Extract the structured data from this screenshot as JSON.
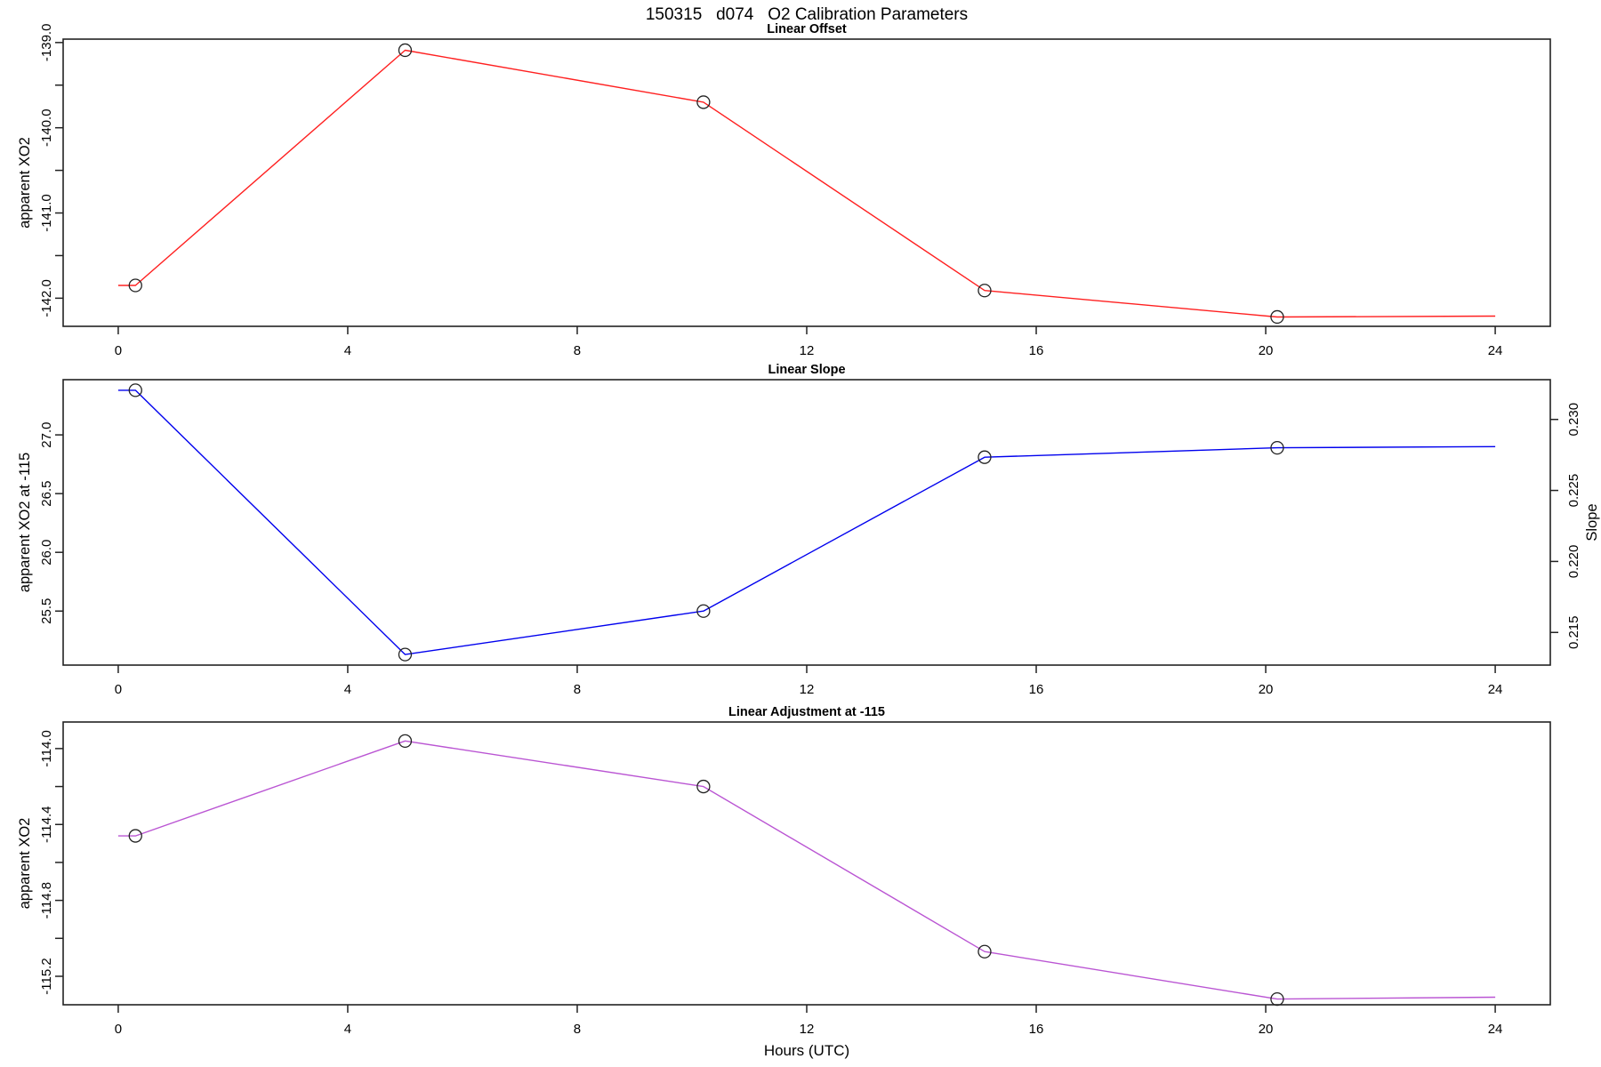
{
  "main_title": "150315   d074   O2 Calibration Parameters",
  "xlabel": "Hours (UTC)",
  "frame_color": "#222222",
  "point_color": "#222222",
  "chart_data": [
    {
      "type": "line",
      "title": "Linear Offset",
      "ylabel": "apparent XO2",
      "color": "#ff2020",
      "xlim": [
        -0.96,
        24.96
      ],
      "ylim": [
        -142.33,
        -138.96
      ],
      "xticks": {
        "values": [
          0,
          4,
          8,
          12,
          16,
          20,
          24
        ],
        "labels": [
          "0",
          "4",
          "8",
          "12",
          "16",
          "20",
          "24"
        ]
      },
      "yticks": {
        "values": [
          -142.0,
          -141.5,
          -141.0,
          -140.5,
          -140.0,
          -139.5,
          -139.0
        ],
        "labels": [
          "-142.0",
          "",
          "-141.0",
          "",
          "-140.0",
          "",
          "-139.0"
        ]
      },
      "points": {
        "x": [
          0.3,
          5.0,
          10.2,
          15.1,
          20.2
        ],
        "y": [
          -141.85,
          -139.09,
          -139.7,
          -141.91,
          -142.22
        ]
      },
      "line": {
        "x": [
          0,
          0.3,
          5.0,
          10.2,
          15.1,
          20.2,
          24
        ],
        "y": [
          -141.85,
          -141.85,
          -139.09,
          -139.7,
          -141.91,
          -142.22,
          -142.21
        ]
      }
    },
    {
      "type": "line",
      "title": "Linear Slope",
      "ylabel": "apparent XO2 at -115",
      "ylabel_right": "Slope",
      "color": "#0000ee",
      "xlim": [
        -0.96,
        24.96
      ],
      "ylim": [
        25.04,
        27.47
      ],
      "ylim_right": [
        0.2127,
        0.2328
      ],
      "xticks": {
        "values": [
          0,
          4,
          8,
          12,
          16,
          20,
          24
        ],
        "labels": [
          "0",
          "4",
          "8",
          "12",
          "16",
          "20",
          "24"
        ]
      },
      "yticks": {
        "values": [
          25.5,
          26.0,
          26.5,
          27.0
        ],
        "labels": [
          "25.5",
          "26.0",
          "26.5",
          "27.0"
        ]
      },
      "yticks_right": {
        "values": [
          0.215,
          0.22,
          0.225,
          0.23
        ],
        "labels": [
          "0.215",
          "0.220",
          "0.225",
          "0.230"
        ]
      },
      "points": {
        "x": [
          0.3,
          5.0,
          10.2,
          15.1,
          20.2
        ],
        "y": [
          27.38,
          25.13,
          25.5,
          26.81,
          26.89
        ]
      },
      "line": {
        "x": [
          0,
          0.3,
          5.0,
          10.2,
          15.1,
          20.2,
          24
        ],
        "y": [
          27.38,
          27.38,
          25.13,
          25.5,
          26.81,
          26.89,
          26.9
        ]
      }
    },
    {
      "type": "line",
      "title": "Linear Adjustment at -115",
      "ylabel": "apparent XO2",
      "color": "#ba55d3",
      "xlim": [
        -0.96,
        24.96
      ],
      "ylim": [
        -115.35,
        -113.86
      ],
      "xticks": {
        "values": [
          0,
          4,
          8,
          12,
          16,
          20,
          24
        ],
        "labels": [
          "0",
          "4",
          "8",
          "12",
          "16",
          "20",
          "24"
        ]
      },
      "yticks": {
        "values": [
          -115.2,
          -115.0,
          -114.8,
          -114.6,
          -114.4,
          -114.2,
          -114.0
        ],
        "labels": [
          "-115.2",
          "",
          "-114.8",
          "",
          "-114.4",
          "",
          "-114.0"
        ]
      },
      "points": {
        "x": [
          0.3,
          5.0,
          10.2,
          15.1,
          20.2
        ],
        "y": [
          -114.46,
          -113.96,
          -114.2,
          -115.07,
          -115.32
        ]
      },
      "line": {
        "x": [
          0,
          0.3,
          5.0,
          10.2,
          15.1,
          20.2,
          24
        ],
        "y": [
          -114.46,
          -114.46,
          -113.96,
          -114.2,
          -115.07,
          -115.32,
          -115.31
        ]
      }
    }
  ]
}
